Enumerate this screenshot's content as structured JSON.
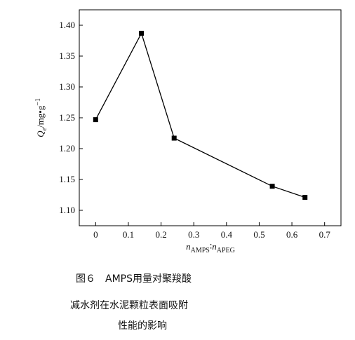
{
  "chart_data": {
    "type": "line",
    "x_label": {
      "n1": "n",
      "sub1": "AMPS",
      "sep": "∶",
      "n2": "n",
      "sub2": "APEG"
    },
    "y_label": {
      "symbol": "Q",
      "sub": "e",
      "unit": "/mg•g",
      "sup": "−1"
    },
    "x": [
      0,
      0.14,
      0.24,
      0.54,
      0.64
    ],
    "series": [
      {
        "color": "#000000",
        "values": [
          1.247,
          1.387,
          1.217,
          1.139,
          1.121
        ]
      }
    ],
    "xlim": [
      -0.05,
      0.75
    ],
    "xticks": [
      0,
      0.1,
      0.2,
      0.3,
      0.4,
      0.5,
      0.6,
      0.7
    ],
    "ylim": [
      1.075,
      1.425
    ],
    "yticks": [
      {
        "value": 1.1,
        "label": "1.10"
      },
      {
        "value": 1.15,
        "label": "1.15"
      },
      {
        "value": 1.2,
        "label": "1.20"
      },
      {
        "value": 1.25,
        "label": "1.25"
      },
      {
        "value": 1.3,
        "label": "1.30"
      },
      {
        "value": 1.35,
        "label": "1.35"
      },
      {
        "value": 1.4,
        "label": "1.40"
      }
    ]
  },
  "caption": [
    "图６　AMPS用量对聚羧酸",
    "减水剂在水泥颗粒表面吸附",
    "性能的影响"
  ]
}
